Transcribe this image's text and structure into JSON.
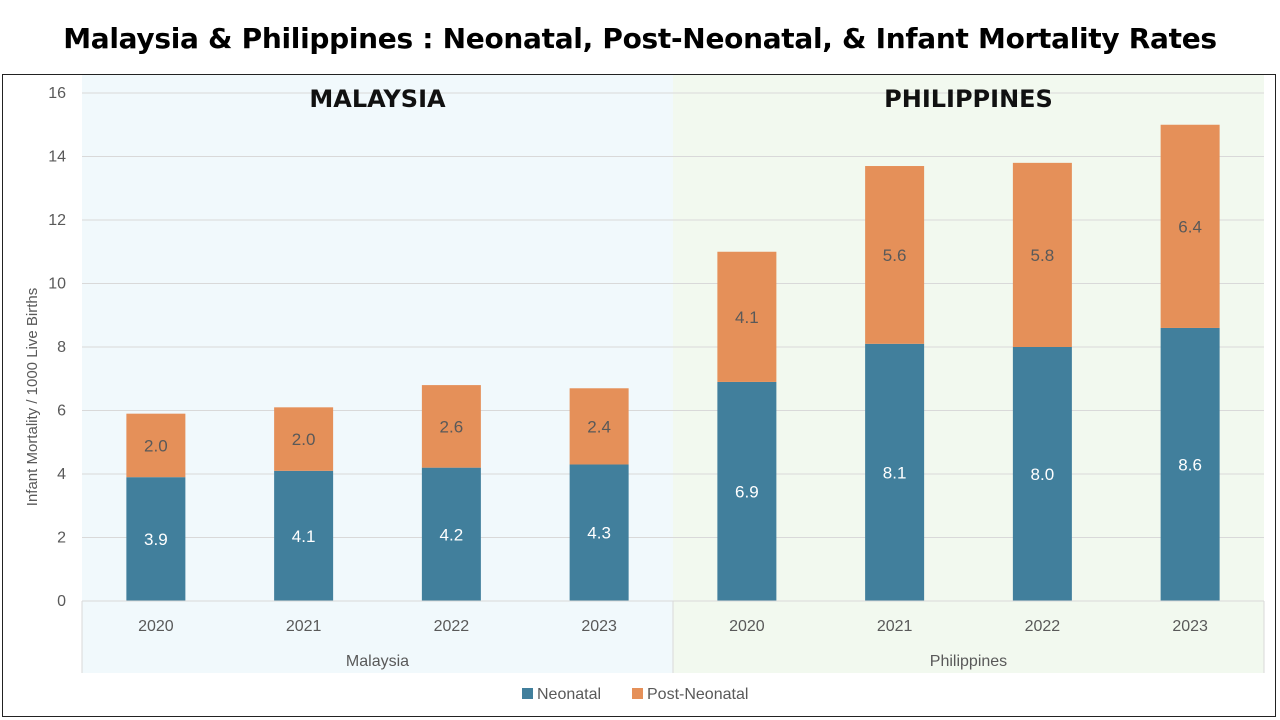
{
  "chart_data": {
    "type": "bar",
    "stacked": true,
    "title": "Malaysia & Philippines : Neonatal, Post-Neonatal, & Infant Mortality Rates",
    "ylabel": "Infant Mortality / 1000 Live Births",
    "xlabel": "",
    "ylim": [
      0,
      16
    ],
    "yticks": [
      0,
      2,
      4,
      6,
      8,
      10,
      12,
      14,
      16
    ],
    "grid": true,
    "legend_position": "bottom",
    "groups": [
      {
        "name": "Malaysia",
        "panel_label": "MALAYSIA",
        "panel_color": "#f1f9fc",
        "categories": [
          "2020",
          "2021",
          "2022",
          "2023"
        ]
      },
      {
        "name": "Philippines",
        "panel_label": "PHILIPPINES",
        "panel_color": "#f2f9ef",
        "categories": [
          "2020",
          "2021",
          "2022",
          "2023"
        ]
      }
    ],
    "series": [
      {
        "name": "Neonatal",
        "color": "#417f9c",
        "values": [
          3.9,
          4.1,
          4.2,
          4.3,
          6.9,
          8.1,
          8.0,
          8.6
        ],
        "labels": [
          "3.9",
          "4.1",
          "4.2",
          "4.3",
          "6.9",
          "8.1",
          "8.0",
          "8.6"
        ]
      },
      {
        "name": "Post-Neonatal",
        "color": "#e59059",
        "values": [
          2.0,
          2.0,
          2.6,
          2.4,
          4.1,
          5.6,
          5.8,
          6.4
        ],
        "labels": [
          "2.0",
          "2.0",
          "2.6",
          "2.4",
          "4.1",
          "5.6",
          "5.8",
          "6.4"
        ]
      }
    ]
  }
}
